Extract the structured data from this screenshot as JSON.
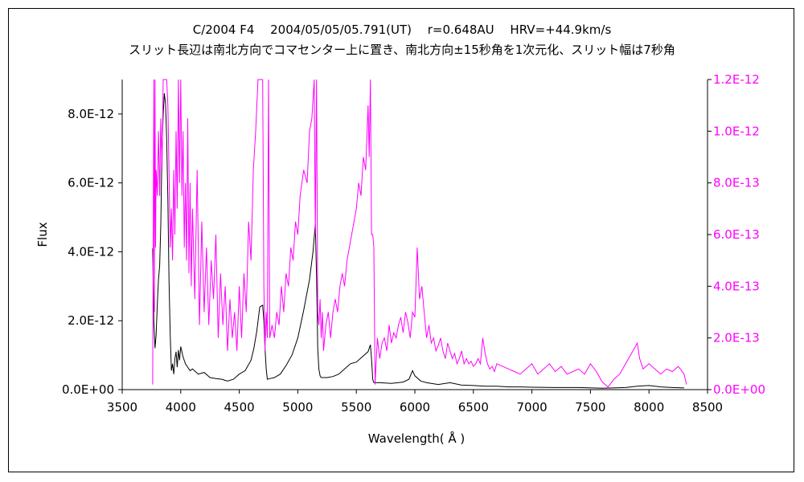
{
  "chart_data": {
    "type": "line",
    "title": "C/2004 F4　 2004/05/05/05.791(UT)　 r=0.648AU　 HRV=+44.9km/s",
    "subtitle": "スリット長辺は南北方向でコマセンター上に置き、南北方向±15秒角を1次元化、スリット幅は7秒角",
    "xlabel": "Wavelength( Å )",
    "ylabel": "Flux",
    "ylabel_right": "",
    "xlim": [
      3500,
      8500
    ],
    "ylim": [
      0,
      9e-12
    ],
    "ylim_right": [
      0,
      1.2e-12
    ],
    "x_ticks": [
      "3500",
      "4000",
      "4500",
      "5000",
      "5500",
      "6000",
      "6500",
      "7000",
      "7500",
      "8000",
      "8500"
    ],
    "y_ticks": [
      "0.0E+00",
      "2.0E-12",
      "4.0E-12",
      "6.0E-12",
      "8.0E-12"
    ],
    "y_ticks_right": [
      "0.0E+00",
      "2.0E-13",
      "4.0E-13",
      "6.0E-13",
      "8.0E-13",
      "1.0E-12",
      "1.2E-12"
    ],
    "grid": false,
    "colors": {
      "left_series": "#000000",
      "right_series": "#ff00ff",
      "right_axis_labels": "#ff00ff"
    },
    "series": [
      {
        "axis": "left",
        "color": "#000000",
        "x": [
          3760,
          3770,
          3780,
          3790,
          3800,
          3810,
          3820,
          3830,
          3840,
          3850,
          3860,
          3870,
          3880,
          3890,
          3900,
          3910,
          3920,
          3930,
          3940,
          3950,
          3960,
          3970,
          3980,
          3990,
          4000,
          4020,
          4040,
          4060,
          4080,
          4100,
          4150,
          4200,
          4250,
          4300,
          4350,
          4400,
          4450,
          4500,
          4550,
          4600,
          4625,
          4650,
          4675,
          4700,
          4710,
          4720,
          4730,
          4740,
          4760,
          4800,
          4850,
          4900,
          4950,
          5000,
          5050,
          5100,
          5130,
          5150,
          5160,
          5170,
          5180,
          5190,
          5200,
          5250,
          5300,
          5350,
          5400,
          5450,
          5500,
          5550,
          5600,
          5620,
          5630,
          5640,
          5650,
          5700,
          5800,
          5900,
          5950,
          5980,
          6000,
          6050,
          6100,
          6200,
          6300,
          6400,
          6500,
          6600,
          6700,
          6800,
          6900,
          7000,
          7200,
          7400,
          7600,
          7800,
          7900,
          8000,
          8100,
          8200,
          8300
        ],
        "y": [
          4.1e-12,
          2e-12,
          1.2e-12,
          1.6e-12,
          2.5e-12,
          3.2e-12,
          3.6e-12,
          4.8e-12,
          7e-12,
          8e-12,
          8.6e-12,
          8.3e-12,
          7.3e-12,
          5.5e-12,
          3.2e-12,
          1.6e-12,
          5.5e-13,
          7.5e-13,
          4.5e-13,
          9e-13,
          1.1e-12,
          6.5e-13,
          1.15e-12,
          8.5e-13,
          1.25e-12,
          9.5e-13,
          7.5e-13,
          6.5e-13,
          5.5e-13,
          6e-13,
          4.5e-13,
          5e-13,
          3.5e-13,
          3.2e-13,
          3e-13,
          2.5e-13,
          3e-13,
          4.5e-13,
          5.5e-13,
          8.5e-13,
          1.2e-12,
          1.7e-12,
          2.4e-12,
          2.45e-12,
          2e-12,
          1.2e-12,
          6e-13,
          3e-13,
          3.2e-13,
          3.5e-13,
          4.5e-13,
          7e-13,
          1e-12,
          1.5e-12,
          2.3e-12,
          3.2e-12,
          4e-12,
          4.8e-12,
          3.3e-12,
          1.2e-12,
          6e-13,
          4e-13,
          3.5e-13,
          3.5e-13,
          3.8e-13,
          4.5e-13,
          6e-13,
          7.5e-13,
          8e-13,
          9.5e-13,
          1.1e-12,
          1.3e-12,
          9e-13,
          3e-13,
          2e-13,
          2e-13,
          1.8e-13,
          2.2e-13,
          3e-13,
          5.5e-13,
          4e-13,
          2.5e-13,
          2e-13,
          1.5e-13,
          2e-13,
          1.3e-13,
          1.2e-13,
          1e-13,
          1e-13,
          8e-14,
          8e-14,
          7e-14,
          6e-14,
          6e-14,
          4e-14,
          6e-14,
          1e-13,
          1.2e-13,
          8e-14,
          6e-14,
          5e-14
        ]
      },
      {
        "axis": "right",
        "color": "#ff00ff",
        "x": [
          3760,
          3770,
          3775,
          3780,
          3785,
          3790,
          3800,
          3810,
          3820,
          3830,
          3840,
          3850,
          3860,
          3870,
          3880,
          3890,
          3900,
          3910,
          3920,
          3930,
          3940,
          3950,
          3960,
          3970,
          3980,
          3990,
          4000,
          4010,
          4020,
          4030,
          4040,
          4050,
          4060,
          4070,
          4080,
          4090,
          4100,
          4120,
          4140,
          4160,
          4180,
          4200,
          4220,
          4240,
          4260,
          4280,
          4300,
          4320,
          4340,
          4360,
          4380,
          4400,
          4420,
          4440,
          4460,
          4480,
          4500,
          4520,
          4540,
          4560,
          4580,
          4600,
          4620,
          4640,
          4660,
          4680,
          4700,
          4710,
          4720,
          4730,
          4740,
          4750,
          4760,
          4780,
          4800,
          4820,
          4840,
          4860,
          4880,
          4900,
          4920,
          4940,
          4960,
          4980,
          5000,
          5020,
          5050,
          5080,
          5100,
          5120,
          5140,
          5150,
          5160,
          5170,
          5180,
          5190,
          5200,
          5210,
          5220,
          5240,
          5260,
          5280,
          5300,
          5320,
          5340,
          5360,
          5380,
          5400,
          5420,
          5440,
          5460,
          5480,
          5500,
          5520,
          5540,
          5560,
          5580,
          5600,
          5610,
          5620,
          5630,
          5640,
          5650,
          5660,
          5680,
          5700,
          5720,
          5740,
          5760,
          5780,
          5800,
          5820,
          5840,
          5860,
          5880,
          5900,
          5920,
          5940,
          5960,
          5980,
          6000,
          6020,
          6040,
          6060,
          6080,
          6100,
          6120,
          6140,
          6160,
          6180,
          6200,
          6220,
          6240,
          6260,
          6280,
          6300,
          6320,
          6340,
          6360,
          6380,
          6400,
          6420,
          6440,
          6460,
          6480,
          6500,
          6520,
          6540,
          6560,
          6580,
          6600,
          6620,
          6640,
          6660,
          6680,
          6700,
          6750,
          6800,
          6850,
          6900,
          6950,
          7000,
          7050,
          7100,
          7150,
          7200,
          7250,
          7300,
          7350,
          7400,
          7450,
          7500,
          7550,
          7600,
          7650,
          7700,
          7750,
          7800,
          7850,
          7900,
          7920,
          7950,
          8000,
          8050,
          8100,
          8150,
          8200,
          8250,
          8300,
          8320
        ],
        "y": [
          2e-14,
          1.2e-12,
          3e-13,
          1.2e-12,
          5.5e-13,
          8.5e-13,
          7.5e-13,
          1e-12,
          7.5e-13,
          1.05e-12,
          8.5e-13,
          1.2e-12,
          1.2e-12,
          1.2e-12,
          1.2e-12,
          1.1e-12,
          8.5e-13,
          5.5e-13,
          7e-13,
          5e-13,
          8.5e-13,
          6e-13,
          1e-12,
          7e-13,
          1.2e-12,
          8e-13,
          1.2e-12,
          7.5e-13,
          1e-12,
          5.5e-13,
          8e-13,
          5e-13,
          1.05e-12,
          4.5e-13,
          8e-13,
          4e-13,
          7e-13,
          3.5e-13,
          8.5e-13,
          2.5e-13,
          6.5e-13,
          3e-13,
          5.5e-13,
          2.5e-13,
          5e-13,
          3.5e-13,
          6e-13,
          2e-13,
          4.5e-13,
          2.5e-13,
          4e-13,
          1.5e-13,
          3.5e-13,
          2e-13,
          3e-13,
          1.5e-13,
          4e-13,
          2e-13,
          4.5e-13,
          3e-13,
          6.5e-13,
          5e-13,
          8.5e-13,
          1e-12,
          1.2e-12,
          1.2e-12,
          1.2e-12,
          4e-13,
          1.5e-13,
          3e-13,
          2e-13,
          1.2e-12,
          2e-13,
          2.5e-13,
          2e-13,
          3e-13,
          2.5e-13,
          4e-13,
          3e-13,
          4.5e-13,
          4e-13,
          5.5e-13,
          5e-13,
          6.5e-13,
          6e-13,
          7.5e-13,
          8.5e-13,
          8e-13,
          1e-12,
          1.05e-12,
          1.2e-12,
          6e-13,
          1.2e-12,
          3e-13,
          2.5e-13,
          3.5e-13,
          2e-13,
          3e-13,
          1.5e-13,
          2.5e-13,
          3e-13,
          2e-13,
          3e-13,
          3.5e-13,
          3e-13,
          4e-13,
          4.5e-13,
          4e-13,
          5e-13,
          5.5e-13,
          6e-13,
          6.5e-13,
          7e-13,
          8e-13,
          7.5e-13,
          9e-13,
          8.5e-13,
          1.1e-12,
          9e-13,
          1.2e-12,
          6e-13,
          6e-13,
          5.5e-13,
          2e-14,
          2e-13,
          1.2e-13,
          1.8e-13,
          2e-13,
          1.5e-13,
          2.5e-13,
          1.8e-13,
          2.2e-13,
          2e-13,
          2.5e-13,
          2.8e-13,
          2.2e-13,
          3e-13,
          2.6e-13,
          2e-13,
          3e-13,
          2.8e-13,
          5.5e-13,
          3.5e-13,
          4e-13,
          3e-13,
          2e-13,
          2.5e-13,
          1.8e-13,
          2e-13,
          1.5e-13,
          1.7e-13,
          2e-13,
          1.5e-13,
          1.2e-13,
          1.8e-13,
          1.5e-13,
          1.2e-13,
          1.4e-13,
          1e-13,
          1.2e-13,
          1.5e-13,
          1e-13,
          1.2e-13,
          1e-13,
          1.1e-13,
          9e-14,
          1e-13,
          1.2e-13,
          1e-13,
          2e-13,
          1.4e-13,
          1e-13,
          8e-14,
          9e-14,
          7e-14,
          1e-13,
          9e-14,
          8e-14,
          7e-14,
          6e-14,
          8e-14,
          1e-13,
          6e-14,
          8e-14,
          1e-13,
          7e-14,
          9e-14,
          6e-14,
          7e-14,
          8e-14,
          6e-14,
          1e-13,
          7e-14,
          3e-14,
          1e-14,
          4e-14,
          6e-14,
          1e-13,
          1.4e-13,
          1.8e-13,
          1.2e-13,
          8e-14,
          1e-13,
          8e-14,
          6e-14,
          8e-14,
          7e-14,
          9e-14,
          6e-14,
          2e-14
        ]
      }
    ]
  }
}
